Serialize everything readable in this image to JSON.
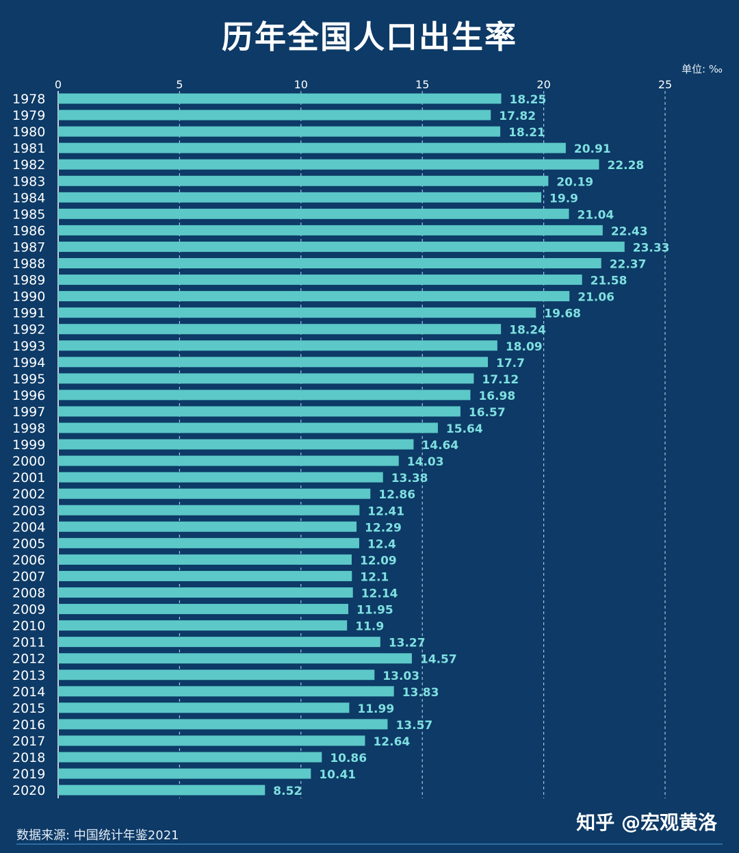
{
  "watermark": "知乎 @宏观黄洛",
  "chart_data": {
    "type": "bar",
    "orientation": "horizontal",
    "title": "历年全国人口出生率",
    "unit_label": "单位: ‰",
    "source": "数据来源: 中国统计年鉴2021",
    "xlim": [
      0,
      25
    ],
    "xticks": [
      0,
      5,
      10,
      15,
      20,
      25
    ],
    "grid": true,
    "categories": [
      "1978",
      "1979",
      "1980",
      "1981",
      "1982",
      "1983",
      "1984",
      "1985",
      "1986",
      "1987",
      "1988",
      "1989",
      "1990",
      "1991",
      "1992",
      "1993",
      "1994",
      "1995",
      "1996",
      "1997",
      "1998",
      "1999",
      "2000",
      "2001",
      "2002",
      "2003",
      "2004",
      "2005",
      "2006",
      "2007",
      "2008",
      "2009",
      "2010",
      "2011",
      "2012",
      "2013",
      "2014",
      "2015",
      "2016",
      "2017",
      "2018",
      "2019",
      "2020"
    ],
    "values": [
      18.25,
      17.82,
      18.21,
      20.91,
      22.28,
      20.19,
      19.9,
      21.04,
      22.43,
      23.33,
      22.37,
      21.58,
      21.06,
      19.68,
      18.24,
      18.09,
      17.7,
      17.12,
      16.98,
      16.57,
      15.64,
      14.64,
      14.03,
      13.38,
      12.86,
      12.41,
      12.29,
      12.4,
      12.09,
      12.1,
      12.14,
      11.95,
      11.9,
      13.27,
      14.57,
      13.03,
      13.83,
      11.99,
      13.57,
      12.64,
      10.86,
      10.41,
      8.52
    ],
    "colors": {
      "bar": "#5cc8c8",
      "label": "#7fe0e0",
      "grid": "#a9c6e2",
      "axis": "#ffffff",
      "background": "#0d3a66"
    }
  }
}
